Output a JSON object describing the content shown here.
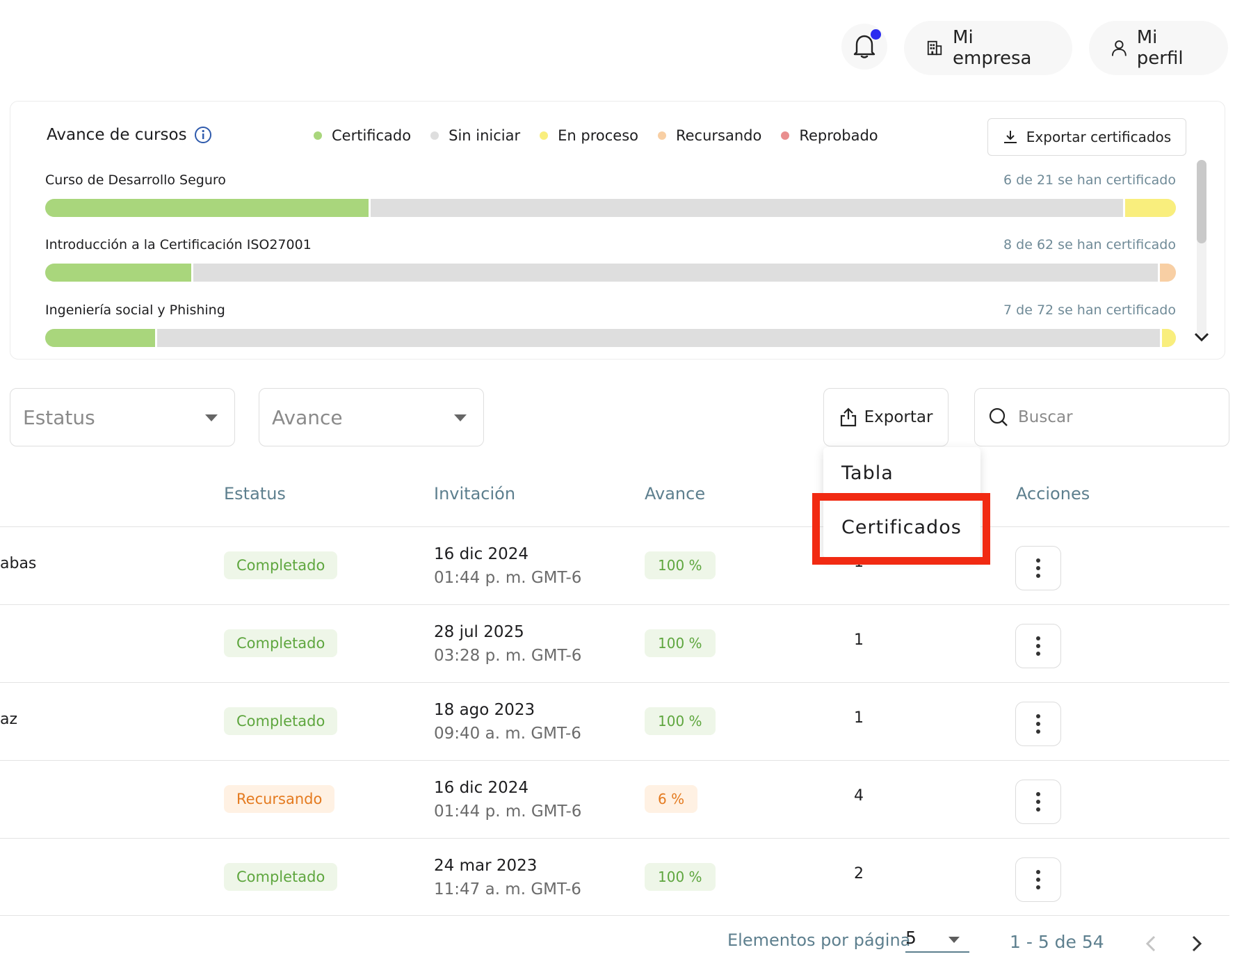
{
  "header": {
    "company_label": "Mi empresa",
    "profile_label": "Mi perfil"
  },
  "progress_card": {
    "title": "Avance de cursos",
    "legend": [
      {
        "label": "Certificado",
        "color": "#a9d67c"
      },
      {
        "label": "Sin iniciar",
        "color": "#dedede"
      },
      {
        "label": "En proceso",
        "color": "#f9ee7d"
      },
      {
        "label": "Recursando",
        "color": "#f8cfa4"
      },
      {
        "label": "Reprobado",
        "color": "#e98e8e"
      }
    ],
    "export_label": "Exportar certificados",
    "courses": [
      {
        "name": "Curso de Desarrollo Seguro",
        "count_text": "6 de 21 se han certificado",
        "segments": [
          {
            "state": "Certificado",
            "fraction": 0.286
          },
          {
            "state": "Sin iniciar",
            "fraction": 0.667
          },
          {
            "state": "En proceso",
            "fraction": 0.047
          }
        ]
      },
      {
        "name": "Introducción a la Certificación ISO27001",
        "count_text": "8 de 62 se han certificado",
        "segments": [
          {
            "state": "Certificado",
            "fraction": 0.129
          },
          {
            "state": "Sin iniciar",
            "fraction": 0.855
          },
          {
            "state": "Recursando",
            "fraction": 0.016
          }
        ]
      },
      {
        "name": "Ingeniería social y Phishing",
        "count_text": "7 de 72 se han certificado",
        "segments": [
          {
            "state": "Certificado",
            "fraction": 0.097
          },
          {
            "state": "Sin iniciar",
            "fraction": 0.889
          },
          {
            "state": "En proceso",
            "fraction": 0.014
          }
        ]
      }
    ]
  },
  "filters": {
    "status_placeholder": "Estatus",
    "progress_placeholder": "Avance",
    "export_label": "Exportar",
    "search_placeholder": "Buscar"
  },
  "export_menu": {
    "items": [
      "Tabla",
      "Certificados"
    ]
  },
  "table": {
    "headers": {
      "status": "Estatus",
      "invitation": "Invitación",
      "progress": "Avance",
      "actions": "Acciones"
    },
    "rows": [
      {
        "name": "abas",
        "status": "Completado",
        "date": "16 dic 2024",
        "time": "01:44 p. m. GMT-6",
        "progress": "100 %",
        "attempts": "1"
      },
      {
        "name": "",
        "status": "Completado",
        "date": "28 jul 2025",
        "time": "03:28 p. m. GMT-6",
        "progress": "100 %",
        "attempts": "1"
      },
      {
        "name": "az",
        "status": "Completado",
        "date": "18 ago 2023",
        "time": "09:40 a. m. GMT-6",
        "progress": "100 %",
        "attempts": "1"
      },
      {
        "name": "",
        "status": "Recursando",
        "date": "16 dic 2024",
        "time": "01:44 p. m. GMT-6",
        "progress": "6 %",
        "attempts": "4"
      },
      {
        "name": "",
        "status": "Completado",
        "date": "24 mar 2023",
        "time": "11:47 a. m. GMT-6",
        "progress": "100 %",
        "attempts": "2"
      }
    ]
  },
  "pagination": {
    "items_per_page_label": "Elementos por página",
    "items_per_page": "5",
    "range": "1 - 5 de 54"
  }
}
